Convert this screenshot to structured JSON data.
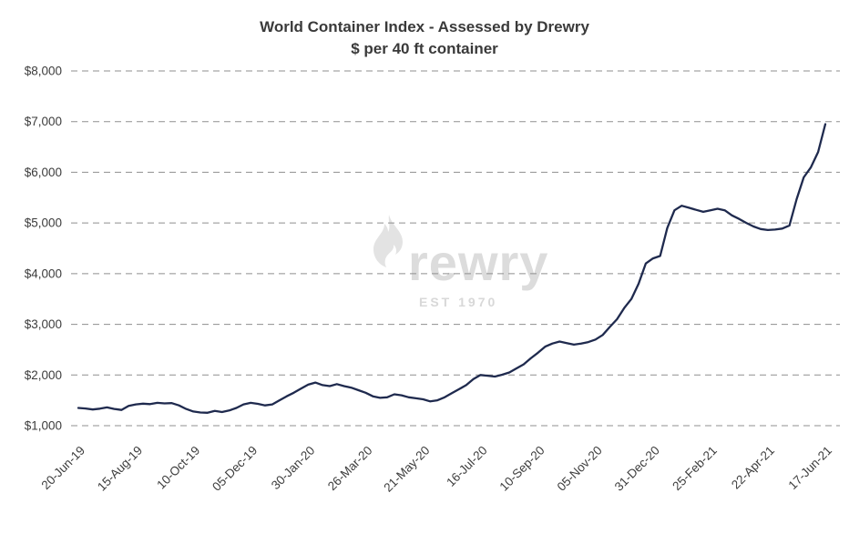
{
  "watermark": {
    "brand": "rewry",
    "est": "EST 1970"
  },
  "chart_data": {
    "type": "line",
    "title": "World Container Index - Assessed by Drewry",
    "subtitle": "$ per 40 ft container",
    "xlabel": "",
    "ylabel": "",
    "ylim": [
      1000,
      8000
    ],
    "grid": "horizontal-dashed",
    "legend_position": "none",
    "line_color": "#1f2a4e",
    "grid_color": "#8f8f8f",
    "tick_color": "#3d3d3d",
    "y_ticks": [
      {
        "value": 1000,
        "label": "$1,000"
      },
      {
        "value": 2000,
        "label": "$2,000"
      },
      {
        "value": 3000,
        "label": "$3,000"
      },
      {
        "value": 4000,
        "label": "$4,000"
      },
      {
        "value": 5000,
        "label": "$5,000"
      },
      {
        "value": 6000,
        "label": "$6,000"
      },
      {
        "value": 7000,
        "label": "$7,000"
      },
      {
        "value": 8000,
        "label": "$8,000"
      }
    ],
    "x_ticks": [
      {
        "index": 0,
        "label": "20-Jun-19"
      },
      {
        "index": 8,
        "label": "15-Aug-19"
      },
      {
        "index": 16,
        "label": "10-Oct-19"
      },
      {
        "index": 24,
        "label": "05-Dec-19"
      },
      {
        "index": 32,
        "label": "30-Jan-20"
      },
      {
        "index": 40,
        "label": "26-Mar-20"
      },
      {
        "index": 48,
        "label": "21-May-20"
      },
      {
        "index": 56,
        "label": "16-Jul-20"
      },
      {
        "index": 64,
        "label": "10-Sep-20"
      },
      {
        "index": 72,
        "label": "05-Nov-20"
      },
      {
        "index": 80,
        "label": "31-Dec-20"
      },
      {
        "index": 88,
        "label": "25-Feb-21"
      },
      {
        "index": 96,
        "label": "22-Apr-21"
      },
      {
        "index": 104,
        "label": "17-Jun-21"
      }
    ],
    "series": [
      {
        "name": "World Container Index (weekly, $ per 40ft container)",
        "values": [
          1350,
          1340,
          1320,
          1335,
          1360,
          1330,
          1310,
          1390,
          1420,
          1435,
          1425,
          1450,
          1440,
          1445,
          1400,
          1330,
          1280,
          1260,
          1255,
          1290,
          1270,
          1300,
          1350,
          1420,
          1450,
          1430,
          1400,
          1420,
          1500,
          1580,
          1650,
          1730,
          1810,
          1850,
          1800,
          1780,
          1820,
          1780,
          1750,
          1700,
          1650,
          1580,
          1550,
          1560,
          1620,
          1600,
          1560,
          1540,
          1520,
          1480,
          1500,
          1560,
          1640,
          1720,
          1800,
          1920,
          2000,
          1985,
          1970,
          2005,
          2050,
          2130,
          2210,
          2330,
          2440,
          2560,
          2620,
          2660,
          2630,
          2600,
          2620,
          2650,
          2700,
          2790,
          2950,
          3100,
          3320,
          3500,
          3800,
          4200,
          4300,
          4350,
          4900,
          5250,
          5340,
          5300,
          5260,
          5220,
          5250,
          5280,
          5250,
          5150,
          5080,
          5000,
          4930,
          4880,
          4860,
          4870,
          4890,
          4950,
          5470,
          5900,
          6100,
          6400,
          6950
        ]
      }
    ]
  }
}
